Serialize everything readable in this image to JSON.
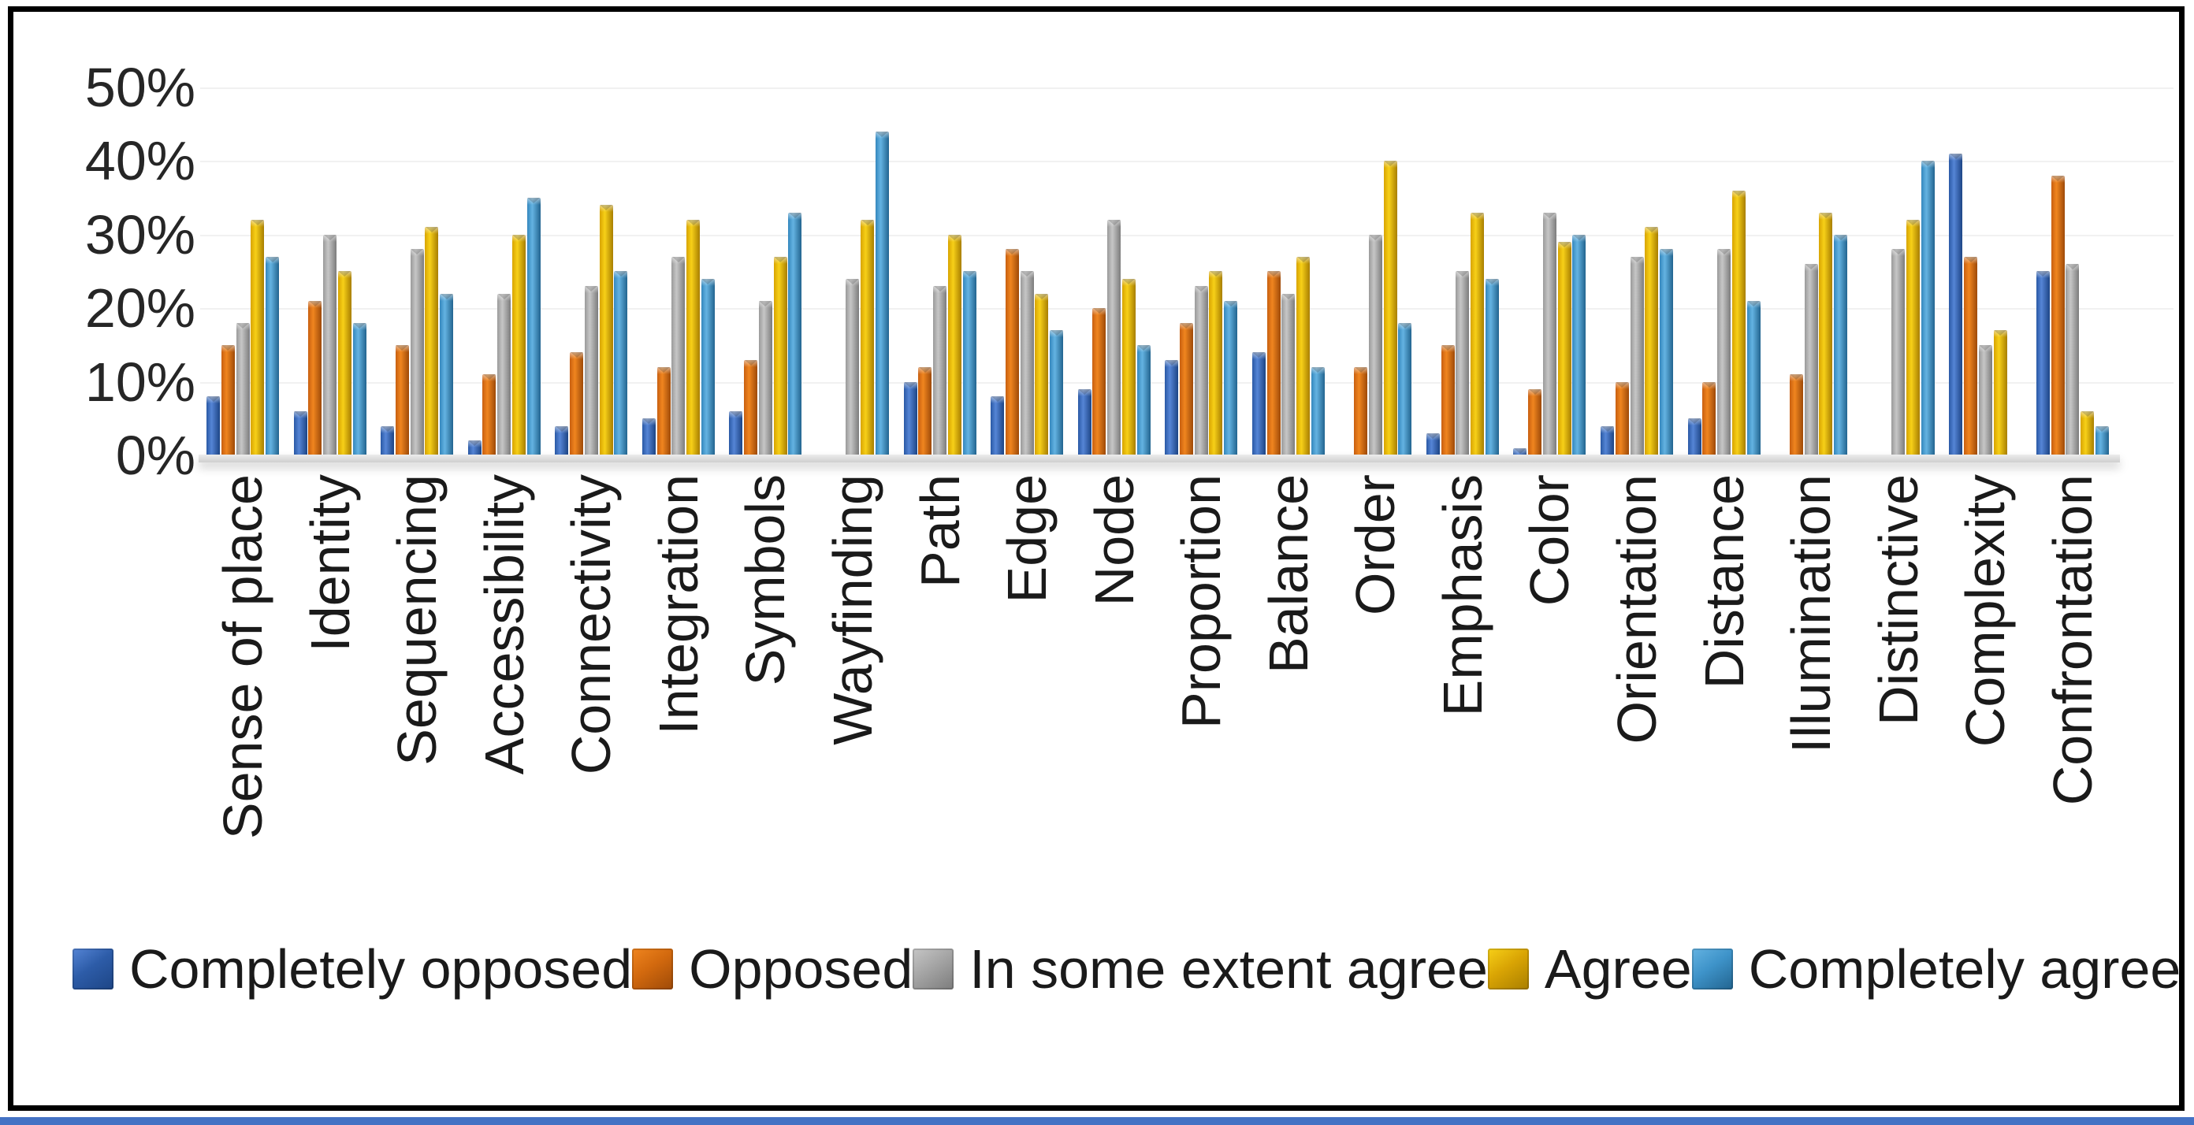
{
  "chart_data": {
    "type": "bar",
    "title": "",
    "xlabel": "",
    "ylabel": "",
    "ylim": [
      0,
      50
    ],
    "yticks": [
      "0%",
      "10%",
      "20%",
      "30%",
      "40%",
      "50%"
    ],
    "grid": "faint-horizontal",
    "legend_position": "bottom",
    "categories": [
      "Sense of place",
      "Identity",
      "Sequencing",
      "Accessibility",
      "Connectivity",
      "Integration",
      "Symbols",
      "Wayfinding",
      "Path",
      "Edge",
      "Node",
      "Proportion",
      "Balance",
      "Order",
      "Emphasis",
      "Color",
      "Orientation",
      "Distance",
      "Illumination",
      "Distinctive",
      "Complexity",
      "Confrontation"
    ],
    "series": [
      {
        "name": "Completely opposed",
        "color": "#2d5ca8",
        "gradient": [
          "#2a59a5",
          "#5585d6",
          "#1d4585"
        ],
        "values": [
          8,
          6,
          4,
          2,
          4,
          5,
          6,
          0,
          10,
          8,
          9,
          13,
          14,
          0,
          3,
          1,
          4,
          5,
          0,
          0,
          41,
          25
        ]
      },
      {
        "name": "Opposed",
        "color": "#d2690e",
        "gradient": [
          "#c85f10",
          "#f0851f",
          "#9e4a08"
        ],
        "values": [
          15,
          21,
          15,
          11,
          14,
          12,
          13,
          0,
          12,
          28,
          20,
          18,
          25,
          12,
          15,
          9,
          10,
          10,
          11,
          0,
          27,
          38
        ]
      },
      {
        "name": "In some extent agree",
        "color": "#a5a5a5",
        "gradient": [
          "#9a9a9a",
          "#c6c6c6",
          "#7c7c7c"
        ],
        "values": [
          18,
          30,
          28,
          22,
          23,
          27,
          21,
          24,
          23,
          25,
          32,
          23,
          22,
          30,
          25,
          33,
          27,
          28,
          26,
          28,
          15,
          26
        ]
      },
      {
        "name": "Agree",
        "color": "#d9a404",
        "gradient": [
          "#d8a400",
          "#f7d018",
          "#a87e00"
        ],
        "values": [
          32,
          25,
          31,
          30,
          34,
          32,
          27,
          32,
          30,
          22,
          24,
          25,
          27,
          40,
          33,
          29,
          31,
          36,
          33,
          32,
          17,
          6
        ]
      },
      {
        "name": "Completely agree",
        "color": "#3e93c9",
        "gradient": [
          "#3487bd",
          "#64b3e2",
          "#22648f"
        ],
        "values": [
          27,
          18,
          22,
          35,
          25,
          24,
          33,
          44,
          25,
          17,
          15,
          21,
          12,
          18,
          24,
          30,
          28,
          21,
          30,
          40,
          0,
          4
        ]
      }
    ]
  },
  "frame_color": "#000000",
  "accent_strip_color": "#4472c4"
}
